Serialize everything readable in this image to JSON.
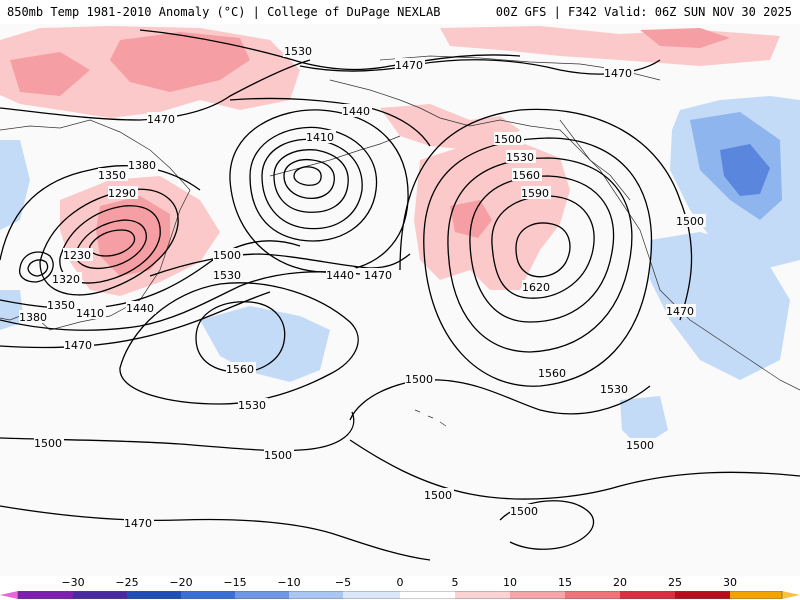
{
  "header": {
    "left_title": "850mb Temp 1981-2010 Anomaly (°C) | College of DuPage NEXLAB",
    "right_title": "00Z GFS | F342 Valid: 06Z SUN NOV 30 2025"
  },
  "colors": {
    "warm_light": "#fbc9c9",
    "warm_mid": "#f59ea3",
    "warm_strong": "#ee6f78",
    "cool_light": "#c3dbf7",
    "cool_mid": "#8fb5ee",
    "cool_strong": "#5a86de",
    "contour": "#000000",
    "coast": "#333333"
  },
  "contour_labels": [
    {
      "id": "l1530a",
      "text": "1530"
    },
    {
      "id": "l1470a",
      "text": "1470"
    },
    {
      "id": "l1470b",
      "text": "1470"
    },
    {
      "id": "l1470c",
      "text": "1470"
    },
    {
      "id": "l1440a",
      "text": "1440"
    },
    {
      "id": "l1410a",
      "text": "1410"
    },
    {
      "id": "l1380a",
      "text": "1380"
    },
    {
      "id": "l1350a",
      "text": "1350"
    },
    {
      "id": "l1290",
      "text": "1290"
    },
    {
      "id": "l1230",
      "text": "1230"
    },
    {
      "id": "l1320",
      "text": "1320"
    },
    {
      "id": "l1350b",
      "text": "1350"
    },
    {
      "id": "l1380b",
      "text": "1380"
    },
    {
      "id": "l1410b",
      "text": "1410"
    },
    {
      "id": "l1440b",
      "text": "1440"
    },
    {
      "id": "l1470d",
      "text": "1470"
    },
    {
      "id": "l1500a",
      "text": "1500"
    },
    {
      "id": "l1530b",
      "text": "1530"
    },
    {
      "id": "l1440c",
      "text": "1440"
    },
    {
      "id": "l1470e",
      "text": "1470"
    },
    {
      "id": "l1500b",
      "text": "1500"
    },
    {
      "id": "l1530c",
      "text": "1530"
    },
    {
      "id": "l1560a",
      "text": "1560"
    },
    {
      "id": "l1590",
      "text": "1590"
    },
    {
      "id": "l1620",
      "text": "1620"
    },
    {
      "id": "l1560b",
      "text": "1560"
    },
    {
      "id": "l1560c",
      "text": "1560"
    },
    {
      "id": "l1530d",
      "text": "1530"
    },
    {
      "id": "l1500c",
      "text": "1500"
    },
    {
      "id": "l1500d",
      "text": "1500"
    },
    {
      "id": "l1470f",
      "text": "1470"
    },
    {
      "id": "l1500e",
      "text": "1500"
    },
    {
      "id": "l1530e",
      "text": "1530"
    },
    {
      "id": "l1500f",
      "text": "1500"
    },
    {
      "id": "l1500g",
      "text": "1500"
    },
    {
      "id": "l1500h",
      "text": "1500"
    },
    {
      "id": "l1500i",
      "text": "1500"
    },
    {
      "id": "l1470g",
      "text": "1470"
    }
  ],
  "colorbar": {
    "ticks": [
      "−30",
      "−25",
      "−20",
      "−15",
      "−10",
      "−5",
      "0",
      "5",
      "10",
      "15",
      "20",
      "25",
      "30"
    ],
    "segments": [
      "#7d1fb0",
      "#4a2aa0",
      "#1f4fb5",
      "#3a6fd6",
      "#6f97e6",
      "#a9c7f2",
      "#dbe8fa",
      "#ffffff",
      "#fbd3d3",
      "#f6a6aa",
      "#ee7479",
      "#d83040",
      "#b50f1e",
      "#f4a200"
    ]
  }
}
